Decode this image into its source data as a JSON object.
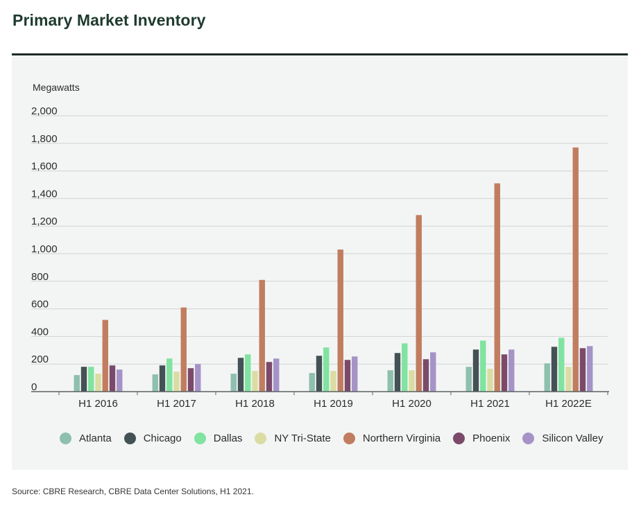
{
  "title": "Primary Market Inventory",
  "source": "Source: CBRE Research, CBRE Data Center Solutions, H1 2021.",
  "chart_data": {
    "type": "bar",
    "ylabel": "Megawatts",
    "xlabel": "",
    "ylim": [
      0,
      2000
    ],
    "yticks": [
      0,
      200,
      400,
      600,
      800,
      1000,
      1200,
      1400,
      1600,
      1800,
      2000
    ],
    "ytick_labels": [
      "0",
      "200",
      "400",
      "600",
      "800",
      "1,000",
      "1,200",
      "1,400",
      "1,600",
      "1,800",
      "2,000"
    ],
    "grid": true,
    "legend_position": "bottom",
    "categories": [
      "H1 2016",
      "H1 2017",
      "H1 2018",
      "H1 2019",
      "H1 2020",
      "H1 2021",
      "H1 2022E"
    ],
    "series": [
      {
        "name": "Atlanta",
        "color": "#8fbfae",
        "values": [
          120,
          125,
          130,
          135,
          155,
          180,
          205
        ]
      },
      {
        "name": "Chicago",
        "color": "#435254",
        "values": [
          180,
          190,
          245,
          260,
          280,
          305,
          325
        ]
      },
      {
        "name": "Dallas",
        "color": "#80e3a0",
        "values": [
          180,
          240,
          270,
          320,
          350,
          370,
          390
        ]
      },
      {
        "name": "NY Tri-State",
        "color": "#dbdca3",
        "values": [
          130,
          145,
          150,
          150,
          155,
          165,
          180
        ]
      },
      {
        "name": "Northern Virginia",
        "color": "#c17d60",
        "values": [
          520,
          610,
          810,
          1030,
          1280,
          1510,
          1770
        ]
      },
      {
        "name": "Phoenix",
        "color": "#7b4a6a",
        "values": [
          190,
          170,
          215,
          230,
          235,
          270,
          315
        ]
      },
      {
        "name": "Silicon Valley",
        "color": "#a593c8",
        "values": [
          160,
          200,
          240,
          255,
          285,
          305,
          330
        ]
      }
    ]
  }
}
